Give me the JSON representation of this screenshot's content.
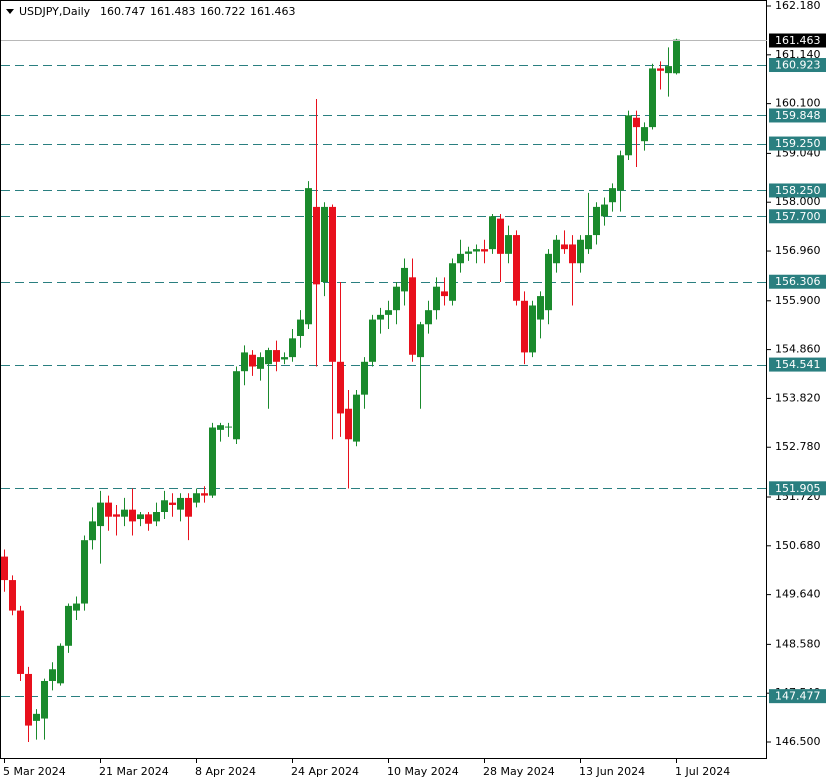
{
  "chart_data": {
    "type": "candlestick",
    "title": "USDJPY,Daily",
    "categories": [
      "5 Mar 2024",
      null,
      null,
      null,
      null,
      null,
      null,
      null,
      null,
      null,
      null,
      null,
      "21 Mar 2024",
      null,
      null,
      null,
      null,
      null,
      null,
      null,
      null,
      null,
      null,
      null,
      "8 Apr 2024",
      null,
      null,
      null,
      null,
      null,
      null,
      null,
      null,
      null,
      null,
      null,
      "24 Apr 2024",
      null,
      null,
      null,
      null,
      null,
      null,
      null,
      null,
      null,
      null,
      null,
      "10 May 2024",
      null,
      null,
      null,
      null,
      null,
      null,
      null,
      null,
      null,
      null,
      null,
      "28 May 2024",
      null,
      null,
      null,
      null,
      null,
      null,
      null,
      null,
      null,
      null,
      null,
      "13 Jun 2024",
      null,
      null,
      null,
      null,
      null,
      null,
      null,
      null,
      null,
      null,
      null,
      "1 Jul 2024"
    ],
    "open": [
      150.45,
      149.95,
      149.3,
      147.95,
      146.95,
      147.0,
      147.8,
      147.75,
      148.55,
      149.3,
      149.45,
      150.8,
      151.1,
      151.6,
      151.35,
      151.3,
      151.45,
      151.25,
      151.35,
      151.2,
      151.4,
      151.6,
      151.45,
      151.7,
      151.6,
      151.8,
      151.75,
      153.15,
      153.2,
      152.95,
      154.4,
      154.75,
      154.45,
      154.55,
      154.85,
      154.65,
      154.7,
      155.15,
      155.4,
      157.9,
      156.3,
      157.9,
      154.6,
      153.6,
      152.9,
      153.9,
      154.6,
      155.5,
      155.6,
      155.7,
      156.1,
      156.4,
      154.7,
      155.4,
      155.7,
      156.1,
      155.9,
      156.7,
      156.9,
      156.95,
      157.0,
      157.0,
      157.65,
      156.9,
      157.3,
      155.9,
      154.8,
      155.5,
      155.7,
      156.7,
      157.1,
      157.1,
      156.7,
      157.0,
      157.3,
      157.7,
      158.0,
      158.25,
      159.0,
      159.8,
      159.3,
      159.6,
      160.85,
      160.75,
      160.747
    ],
    "high": [
      150.6,
      150.05,
      149.4,
      148.1,
      147.2,
      147.85,
      148.2,
      148.6,
      149.45,
      149.6,
      150.9,
      151.5,
      151.85,
      151.75,
      151.55,
      151.7,
      151.9,
      151.4,
      151.4,
      151.6,
      151.85,
      151.8,
      151.8,
      151.8,
      151.9,
      151.95,
      153.3,
      153.3,
      153.3,
      154.5,
      154.95,
      154.85,
      154.8,
      154.9,
      155.05,
      154.8,
      155.3,
      155.7,
      158.45,
      160.2,
      158.0,
      157.95,
      156.3,
      154.0,
      154.0,
      154.7,
      155.6,
      155.75,
      155.9,
      156.3,
      156.8,
      156.8,
      155.45,
      155.9,
      156.4,
      156.4,
      156.8,
      157.2,
      157.05,
      157.1,
      157.2,
      157.75,
      157.75,
      157.5,
      157.4,
      156.1,
      155.9,
      156.1,
      157.0,
      157.3,
      157.4,
      157.3,
      157.3,
      158.2,
      158.0,
      158.1,
      158.4,
      159.1,
      159.95,
      159.95,
      159.7,
      160.95,
      161.0,
      161.3,
      161.483
    ],
    "low": [
      149.7,
      149.2,
      147.8,
      146.5,
      146.55,
      146.55,
      147.6,
      147.7,
      148.4,
      149.1,
      149.3,
      150.6,
      150.3,
      151.0,
      150.9,
      151.1,
      150.9,
      151.1,
      151.0,
      151.1,
      151.25,
      151.3,
      151.2,
      150.8,
      151.5,
      151.6,
      151.7,
      152.9,
      153.0,
      152.85,
      154.1,
      154.3,
      154.2,
      153.6,
      154.4,
      154.55,
      154.6,
      154.9,
      155.3,
      154.5,
      156.0,
      152.95,
      153.0,
      151.9,
      152.8,
      153.6,
      154.5,
      155.2,
      155.3,
      155.4,
      155.8,
      154.6,
      153.6,
      155.2,
      155.5,
      155.8,
      155.8,
      156.5,
      156.75,
      156.7,
      156.7,
      156.9,
      156.3,
      156.7,
      155.8,
      154.55,
      154.7,
      155.1,
      155.4,
      156.5,
      156.9,
      155.8,
      156.5,
      156.9,
      157.1,
      157.5,
      157.8,
      157.8,
      158.9,
      158.75,
      159.1,
      159.55,
      160.4,
      160.25,
      160.722
    ],
    "close": [
      149.95,
      149.3,
      147.95,
      146.85,
      147.1,
      147.8,
      148.05,
      148.55,
      149.4,
      149.45,
      150.8,
      151.2,
      151.6,
      151.3,
      151.3,
      151.45,
      151.2,
      151.35,
      151.15,
      151.4,
      151.65,
      151.55,
      151.7,
      151.3,
      151.8,
      151.75,
      153.2,
      153.25,
      153.22,
      154.4,
      154.8,
      154.5,
      154.7,
      154.85,
      154.6,
      154.7,
      155.1,
      155.5,
      158.3,
      156.25,
      157.9,
      154.6,
      153.5,
      152.95,
      153.9,
      154.6,
      155.5,
      155.6,
      155.7,
      156.2,
      156.6,
      154.75,
      155.4,
      155.7,
      156.2,
      156.0,
      156.7,
      156.9,
      156.95,
      157.0,
      156.95,
      157.7,
      156.9,
      157.3,
      155.9,
      154.8,
      155.8,
      156.0,
      156.9,
      157.2,
      157.0,
      156.7,
      157.2,
      157.3,
      157.9,
      157.95,
      158.3,
      159.0,
      159.85,
      159.6,
      159.6,
      160.85,
      160.8,
      160.9,
      161.463
    ],
    "up_color": "#1a8a2c",
    "down_color": "#e8101c",
    "level_color": "#2a7f80",
    "ylim": [
      146.138,
      162.308
    ],
    "yticks": [
      {
        "value": 162.18,
        "label": "162.180"
      },
      {
        "value": 161.14,
        "label": "161.140"
      },
      {
        "value": 160.1,
        "label": "160.100"
      },
      {
        "value": 159.04,
        "label": "159.040"
      },
      {
        "value": 158.0,
        "label": "158.000"
      },
      {
        "value": 156.96,
        "label": "156.960"
      },
      {
        "value": 155.9,
        "label": "155.900"
      },
      {
        "value": 154.86,
        "label": "154.860"
      },
      {
        "value": 153.82,
        "label": "153.820"
      },
      {
        "value": 152.78,
        "label": "152.780"
      },
      {
        "value": 151.72,
        "label": "151.720"
      },
      {
        "value": 150.68,
        "label": "150.680"
      },
      {
        "value": 149.64,
        "label": "149.640"
      },
      {
        "value": 148.58,
        "label": "148.580"
      },
      {
        "value": 147.54,
        "label": "147.540"
      },
      {
        "value": 146.5,
        "label": "146.500"
      }
    ],
    "levels": [
      160.923,
      159.848,
      {
        "value": 159.25,
        "label": "159.250"
      },
      {
        "value": 158.25,
        "label": "158.250"
      },
      {
        "value": 157.7,
        "label": "157.700"
      },
      156.306,
      154.541,
      151.905,
      147.477
    ]
  }
}
